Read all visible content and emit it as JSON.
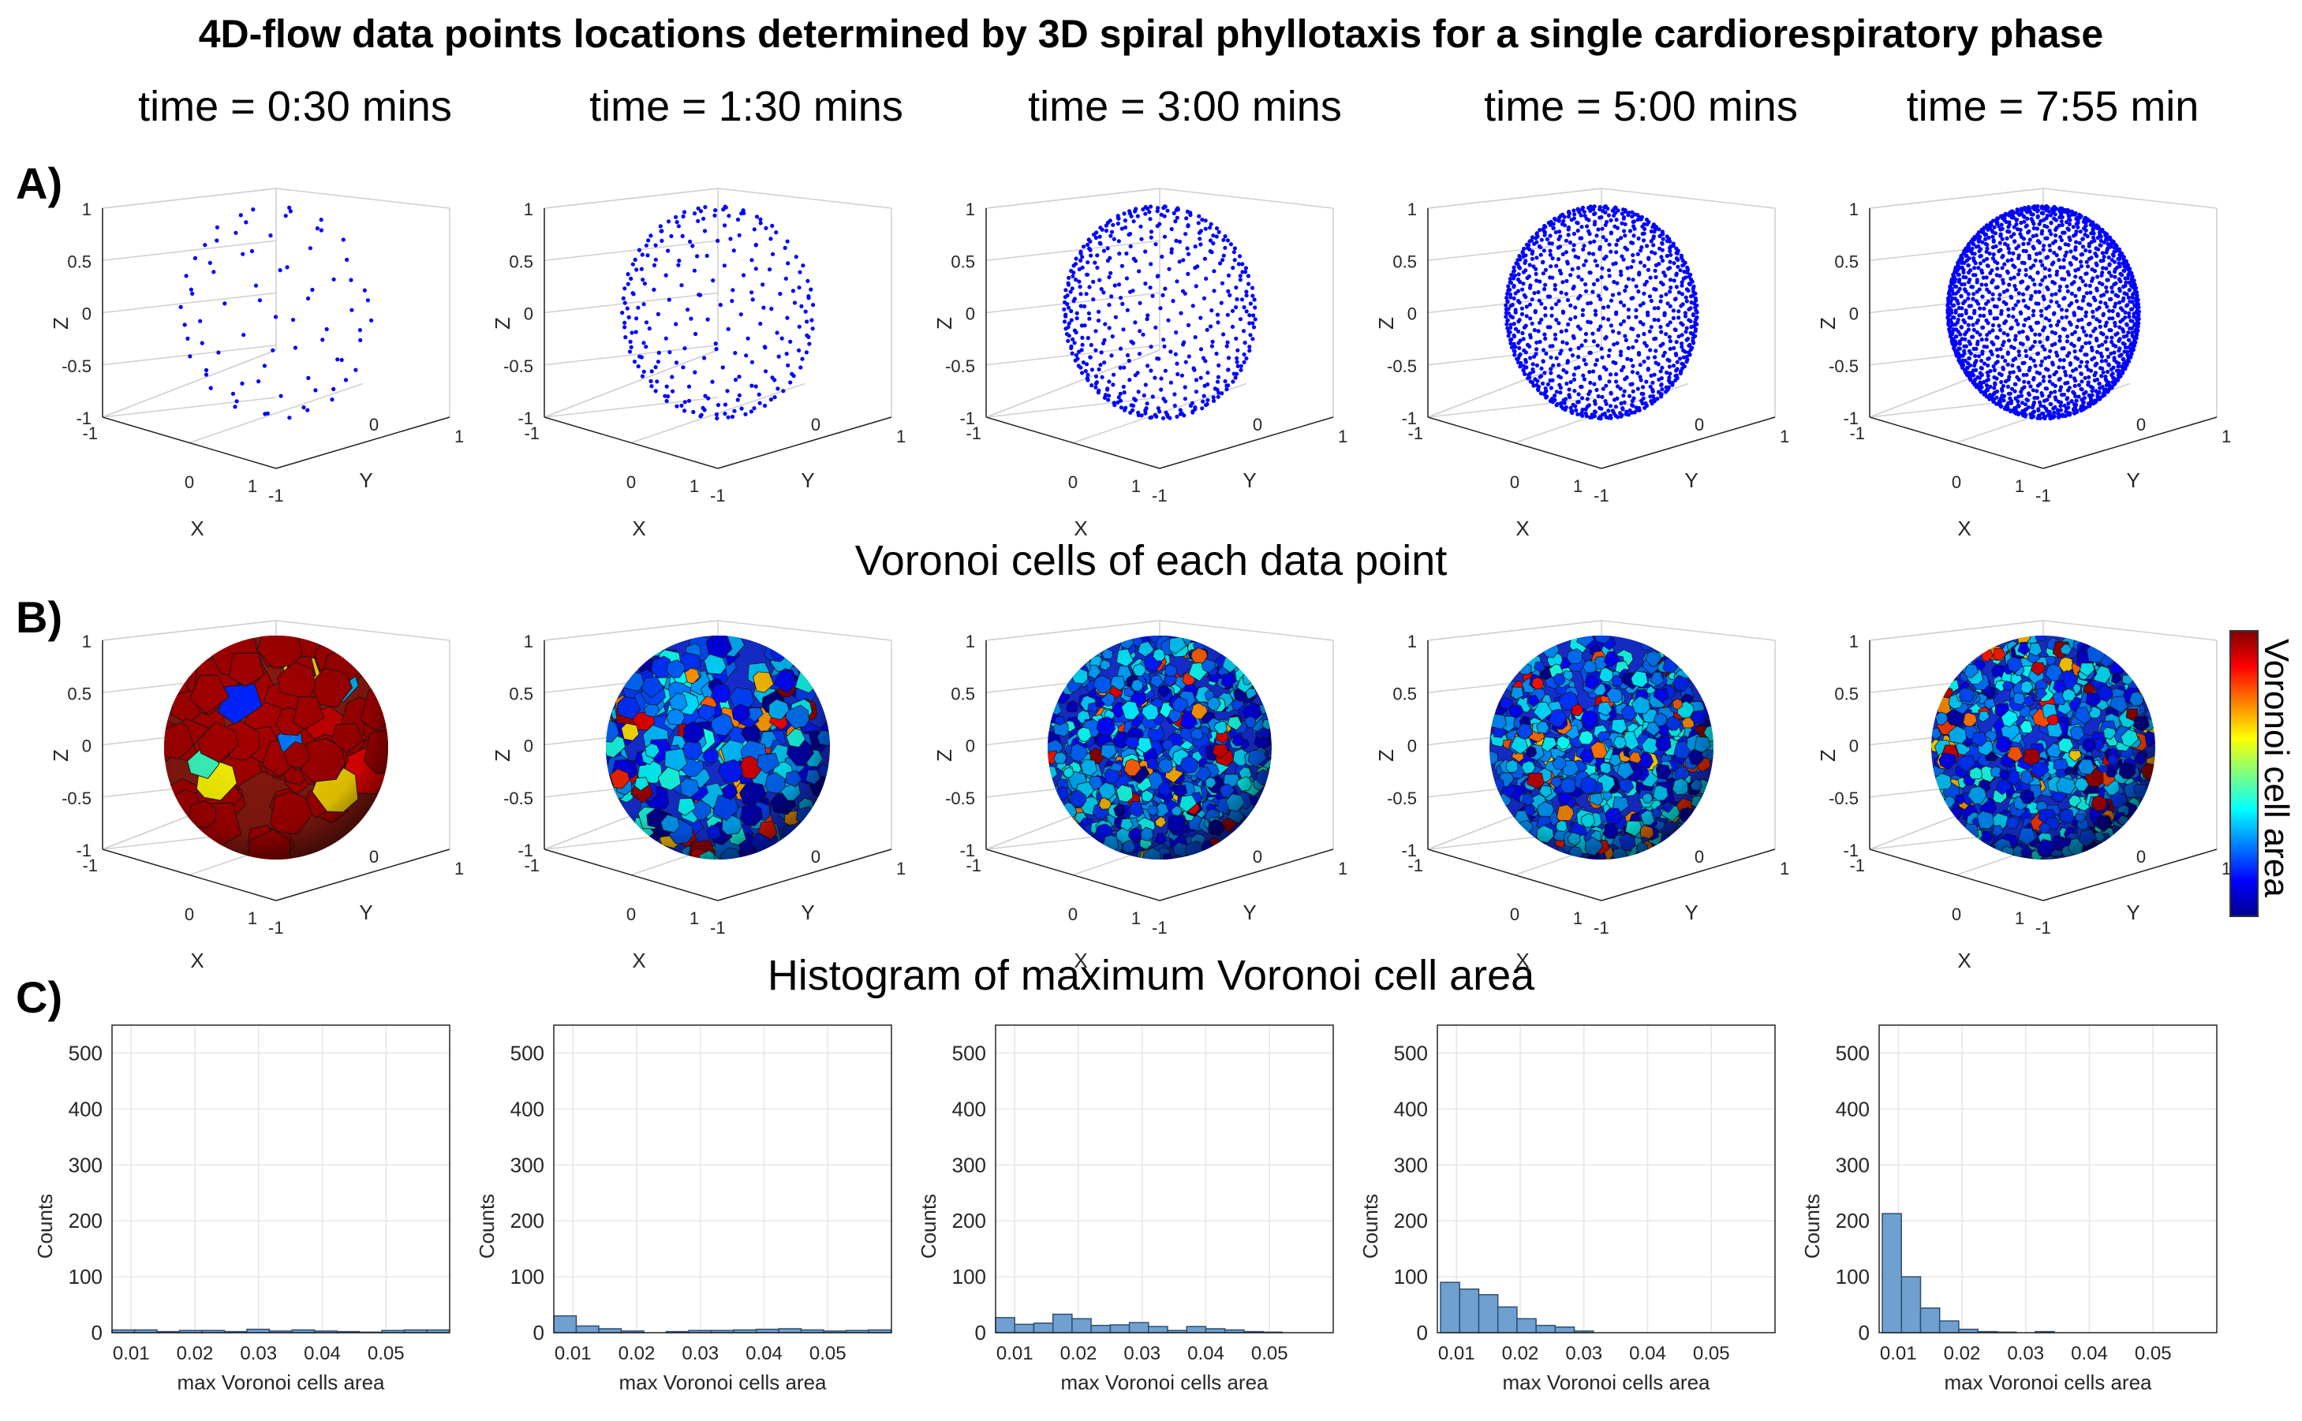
{
  "title": "4D-flow data points locations determined by 3D spiral phyllotaxis for a single cardiorespiratory phase",
  "panels": {
    "a": "A)",
    "b": "B)",
    "c": "C)"
  },
  "time_labels": [
    "time = 0:30 mins",
    "time = 1:30 mins",
    "time = 3:00 mins",
    "time = 5:00 mins",
    "time = 7:55 min"
  ],
  "row_b_title": "Voronoi cells of each data point",
  "row_c_title": "Histogram of maximum Voronoi cell area",
  "colorbar_label": "Voronoi cell area",
  "colors": {
    "points": "#0000ff",
    "bar_fill": "#6fa0d0",
    "bar_edge": "#2f4f6f",
    "grid": "#e6e6e6",
    "axis": "#262626"
  },
  "chart_data": [
    {
      "type": "scatter",
      "row": "A",
      "title": "4D-flow data point locations",
      "axes": {
        "xlabel": "X",
        "ylabel": "Y",
        "zlabel": "Z",
        "xlim": [
          -1,
          1
        ],
        "ylim": [
          -1,
          1
        ],
        "zlim": [
          -1,
          1
        ],
        "z_ticks": [
          "1",
          "0.5",
          "0",
          "-0.5",
          "-1"
        ],
        "x_ticks": [
          "-1",
          "0",
          "1"
        ],
        "y_ticks": [
          "-1",
          "0",
          "1"
        ]
      },
      "point_counts": [
        90,
        300,
        600,
        1000,
        1600
      ]
    },
    {
      "type": "heatmap",
      "row": "B",
      "title": "Voronoi cells of each data point",
      "axes": {
        "xlabel": "X",
        "ylabel": "Y",
        "zlabel": "Z",
        "xlim": [
          -1,
          1
        ],
        "ylim": [
          -1,
          1
        ],
        "zlim": [
          -1,
          1
        ]
      },
      "cell_counts": [
        90,
        300,
        600,
        1000,
        1600
      ],
      "colorbar": {
        "label": "Voronoi cell area",
        "colormap": "jet"
      }
    },
    {
      "type": "bar",
      "row": "C",
      "title": "Histogram of maximum Voronoi cell area",
      "xlabel": "max Voronoi cells area",
      "ylabel": "Counts",
      "ylim": [
        0,
        550
      ],
      "y_ticks": [
        0,
        100,
        200,
        300,
        400,
        500
      ],
      "x_ticks": [
        0.01,
        0.02,
        0.03,
        0.04,
        0.05
      ],
      "x_tick_labels": [
        "0.01",
        "0.02",
        "0.03",
        "0.04",
        "0.05"
      ],
      "series": [
        {
          "name": "time = 0:30 mins",
          "xlim": [
            0.007,
            0.06
          ],
          "bin_start": 0.007,
          "bin_width": 0.00353,
          "values": [
            5,
            5,
            2,
            4,
            4,
            2,
            6,
            3,
            5,
            3,
            2,
            1,
            4,
            5,
            5
          ]
        },
        {
          "name": "time = 1:30 mins",
          "xlim": [
            0.007,
            0.06
          ],
          "bin_start": 0.007,
          "bin_width": 0.00353,
          "values": [
            30,
            12,
            7,
            3,
            0,
            2,
            4,
            4,
            5,
            6,
            7,
            5,
            3,
            4,
            5
          ]
        },
        {
          "name": "time = 3:00 mins",
          "xlim": [
            0.007,
            0.06
          ],
          "bin_start": 0.007,
          "bin_width": 0.003,
          "values": [
            27,
            15,
            17,
            33,
            25,
            13,
            14,
            18,
            11,
            4,
            11,
            7,
            5,
            2,
            1
          ]
        },
        {
          "name": "time = 5:00 mins",
          "xlim": [
            0.007,
            0.06
          ],
          "bin_start": 0.0075,
          "bin_width": 0.003,
          "values": [
            90,
            78,
            68,
            46,
            25,
            13,
            10,
            3
          ]
        },
        {
          "name": "time = 7:55 min",
          "xlim": [
            0.007,
            0.06
          ],
          "bin_start": 0.0075,
          "bin_width": 0.003,
          "values": [
            213,
            100,
            44,
            21,
            6,
            2,
            1,
            0,
            2
          ]
        }
      ]
    }
  ]
}
